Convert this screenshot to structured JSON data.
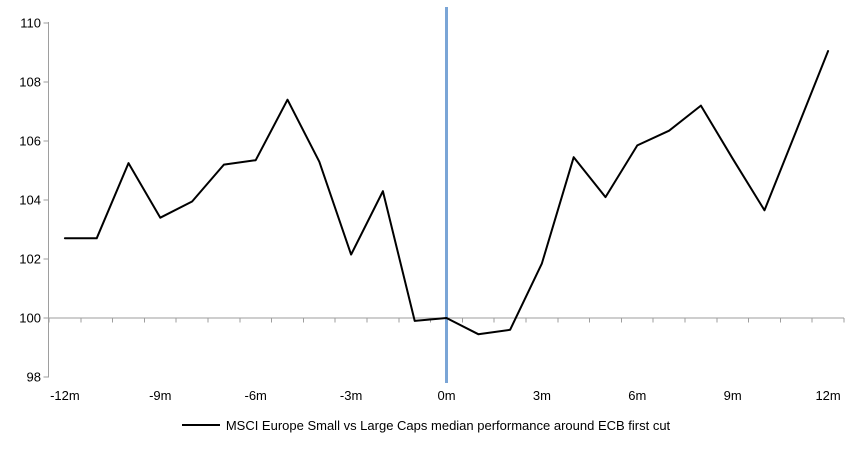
{
  "chart_data": {
    "type": "line",
    "title": "",
    "x": [
      -12,
      -11,
      -10,
      -9,
      -8,
      -7,
      -6,
      -5,
      -4,
      -3,
      -2,
      -1,
      0,
      1,
      2,
      3,
      4,
      5,
      6,
      7,
      8,
      9,
      10,
      11,
      12
    ],
    "series": [
      {
        "name": "MSCI Europe Small vs Large Caps median performance around ECB first cut",
        "color": "#000000",
        "values": [
          102.7,
          102.7,
          105.25,
          103.4,
          103.95,
          105.2,
          105.35,
          107.4,
          105.3,
          102.15,
          104.3,
          99.9,
          100.0,
          99.45,
          99.6,
          101.85,
          105.45,
          104.1,
          105.85,
          106.35,
          107.2,
          105.4,
          103.65,
          106.35,
          109.05
        ]
      }
    ],
    "ylim": [
      98,
      110
    ],
    "y_ticks": [
      110,
      108,
      106,
      104,
      102,
      100,
      98
    ],
    "x_axis_labels": [
      {
        "text": "-12m",
        "month": -12
      },
      {
        "text": "-9m",
        "month": -9
      },
      {
        "text": "-6m",
        "month": -6
      },
      {
        "text": "-3m",
        "month": -3
      },
      {
        "text": "0m",
        "month": 0
      },
      {
        "text": "3m",
        "month": 3
      },
      {
        "text": "6m",
        "month": 6
      },
      {
        "text": "9m",
        "month": 9
      },
      {
        "text": "12m",
        "month": 12
      }
    ],
    "baseline_value": 100,
    "event_line": {
      "month": 0,
      "color": "#7AA5D6"
    },
    "grid": "baseline-only",
    "legend_position": "bottom-center",
    "colors": {
      "series": "#000000",
      "event_line": "#7AA5D6",
      "axis": "#9E9E9E",
      "text": "#000000",
      "background": "#FFFFFF"
    }
  },
  "legend": {
    "label": "MSCI Europe Small vs Large Caps median performance around ECB first cut"
  }
}
